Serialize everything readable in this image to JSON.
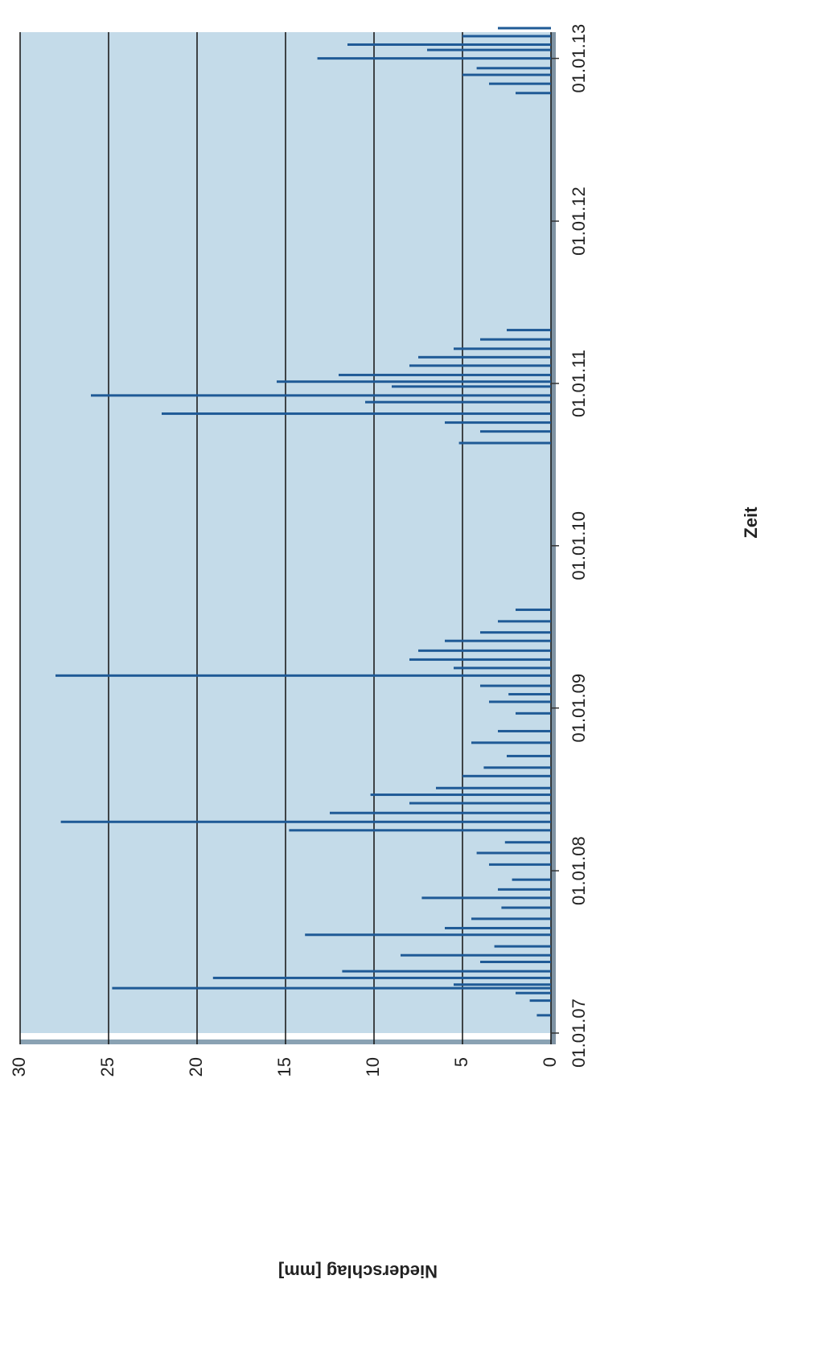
{
  "chart_data": {
    "type": "bar",
    "x_label": "Zeit",
    "y_label": "Niederschlag [mm]",
    "x": [
      "10.02.07",
      "15.03.07",
      "01.04.07",
      "12.04.07",
      "20.04.07",
      "05.05.07",
      "20.05.07",
      "10.06.07",
      "25.06.07",
      "15.07.07",
      "10.08.07",
      "25.08.07",
      "15.09.07",
      "10.10.07",
      "01.11.07",
      "20.11.07",
      "12.12.07",
      "15.01.08",
      "10.02.08",
      "05.03.08",
      "01.04.08",
      "20.04.08",
      "10.05.08",
      "01.06.08",
      "20.06.08",
      "05.07.08",
      "01.08.08",
      "20.08.08",
      "15.09.08",
      "15.10.08",
      "10.11.08",
      "20.12.08",
      "15.01.09",
      "01.02.09",
      "20.02.09",
      "15.03.09",
      "01.04.09",
      "20.04.09",
      "10.05.09",
      "01.06.09",
      "20.06.09",
      "15.07.09",
      "10.08.09",
      "20.08.10",
      "15.09.10",
      "05.10.10",
      "25.10.10",
      "20.11.10",
      "05.12.10",
      "25.12.10",
      "05.01.11",
      "20.01.11",
      "10.02.11",
      "01.03.11",
      "20.03.11",
      "10.04.11",
      "01.05.11",
      "15.10.12",
      "05.11.12",
      "25.11.12",
      "10.12.12",
      "01.01.13",
      "20.01.13",
      "01.02.13",
      "20.02.13",
      "10.03.13"
    ],
    "values": [
      0.8,
      1.2,
      2.0,
      24.8,
      5.5,
      19.1,
      11.8,
      4.0,
      8.5,
      3.2,
      13.9,
      6.0,
      4.5,
      2.8,
      7.3,
      3.0,
      2.2,
      3.5,
      4.2,
      2.6,
      14.8,
      27.7,
      12.5,
      8.0,
      10.2,
      6.5,
      5.0,
      3.8,
      2.5,
      4.5,
      3.0,
      2.0,
      3.5,
      2.4,
      4.0,
      28.0,
      5.5,
      8.0,
      7.5,
      6.0,
      4.0,
      3.0,
      2.0,
      5.2,
      4.0,
      6.0,
      22.0,
      10.5,
      26.0,
      9.0,
      15.5,
      12.0,
      8.0,
      7.5,
      5.5,
      4.0,
      2.5,
      2.0,
      3.5,
      5.0,
      4.2,
      13.2,
      7.0,
      11.5,
      5.0,
      3.0
    ],
    "color": "#1f5a96",
    "xlim": [
      "01.01.07",
      "01.03.13"
    ],
    "xticks": [
      "01.01.07",
      "01.01.08",
      "01.01.09",
      "01.01.10",
      "01.01.11",
      "01.01.12",
      "01.01.13"
    ],
    "ylim": [
      0,
      30
    ],
    "yticks": [
      0,
      5,
      10,
      15,
      20,
      25,
      30
    ],
    "grid": true
  }
}
